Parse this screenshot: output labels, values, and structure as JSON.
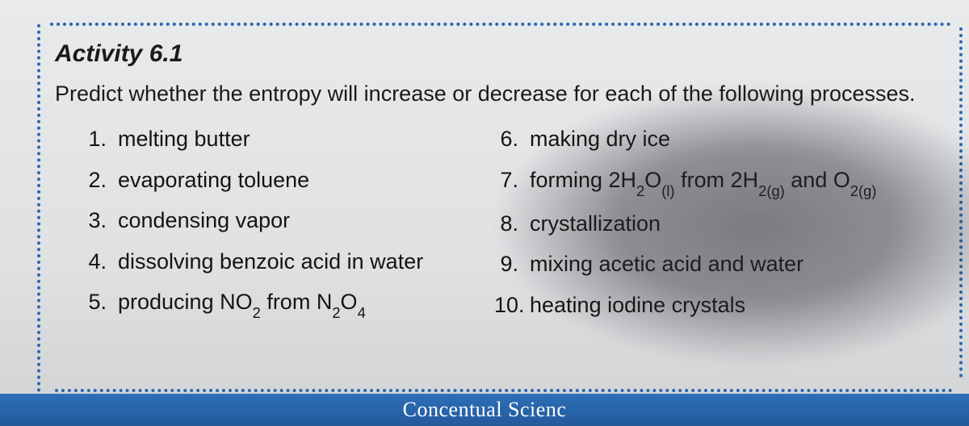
{
  "activity": {
    "title": "Activity 6.1",
    "prompt": "Predict whether the entropy will increase or decrease for each of the following processes.",
    "title_fontsize": 30,
    "prompt_fontsize": 27,
    "text_color": "#1a1a1a",
    "dot_color": "#2a66b0",
    "background_color": "#e2e4e6"
  },
  "items_left": [
    {
      "n": "1.",
      "text": "melting butter"
    },
    {
      "n": "2.",
      "text": "evaporating toluene"
    },
    {
      "n": "3.",
      "text": "condensing vapor"
    },
    {
      "n": "4.",
      "text": "dissolving benzoic acid in water"
    },
    {
      "n": "5.",
      "html": "producing NO<sub>2</sub> from N<sub>2</sub>O<sub>4</sub>"
    }
  ],
  "items_right": [
    {
      "n": "6.",
      "text": "making dry ice"
    },
    {
      "n": "7.",
      "html": "forming 2H<sub>2</sub>O<sub>(l)</sub> from 2H<sub>2(g)</sub> and O<sub>2(g)</sub>"
    },
    {
      "n": "8.",
      "text": "crystallization"
    },
    {
      "n": "9.",
      "text": "mixing acetic acid and water"
    },
    {
      "n": "10.",
      "text": "heating iodine crystals"
    }
  ],
  "footer": {
    "text_partial": "Concentual Scienc",
    "bar_color": "#2d6fb8",
    "text_color": "#ffffff",
    "font_family": "serif"
  }
}
